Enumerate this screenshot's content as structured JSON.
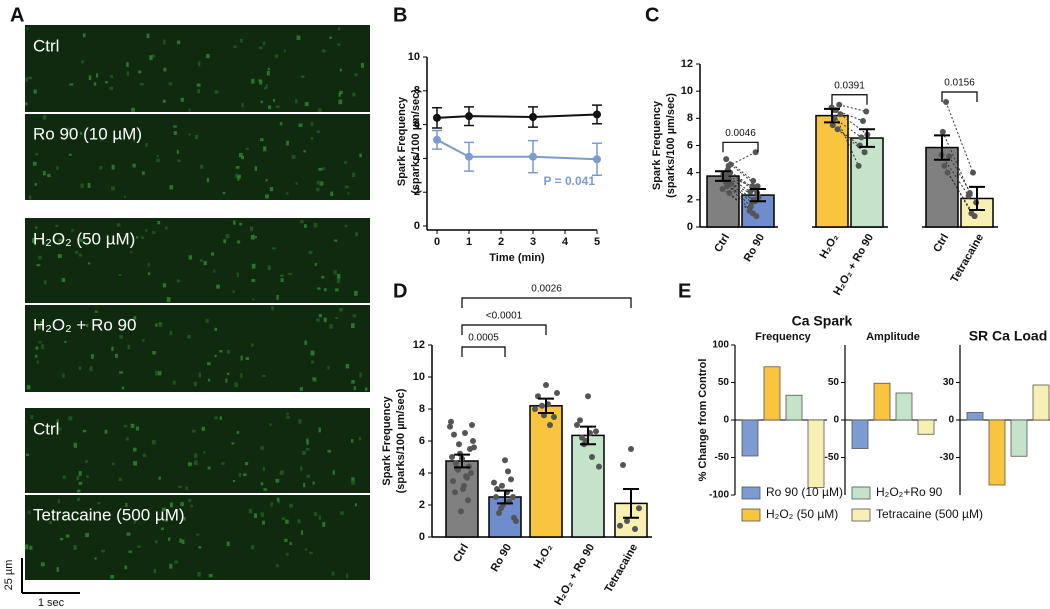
{
  "panel_labels": [
    "A",
    "B",
    "C",
    "D",
    "E"
  ],
  "images": {
    "labels": [
      "Ctrl",
      "Ro 90 (10 µM)",
      "H₂O₂ (50 µM)",
      "H₂O₂ + Ro 90",
      "Ctrl",
      "Tetracaine (500 µM)"
    ],
    "scale_bar_y": "25 µm",
    "scale_bar_x": "1 sec"
  },
  "chart_data": [
    {
      "type": "line",
      "xlabel": "Time (min)",
      "ylabel": [
        "Spark Frequency",
        "(sparks/100 µm/sec)"
      ],
      "x": [
        0,
        1,
        3,
        5
      ],
      "xlim": [
        0,
        5
      ],
      "xticks": [
        0,
        1,
        2,
        3,
        4,
        5
      ],
      "ylim": [
        0,
        10
      ],
      "yticks": [
        0,
        2,
        4,
        6,
        8,
        10
      ],
      "series": [
        {
          "color": "#111111",
          "values": [
            6.4,
            6.5,
            6.45,
            6.6
          ],
          "errors": [
            0.6,
            0.55,
            0.6,
            0.55
          ]
        },
        {
          "color": "#7b9bd1",
          "values": [
            5.1,
            4.1,
            4.1,
            3.95
          ],
          "errors": [
            0.55,
            0.85,
            0.95,
            0.95
          ]
        }
      ],
      "annotation": "P = 0.041"
    },
    {
      "type": "paired-bar",
      "ylabel": [
        "Spark Frequency",
        "(sparks/100 µm/sec)"
      ],
      "categories": [
        "Ctrl",
        "Ro 90",
        "H₂O₂",
        "H₂O₂ + Ro 90",
        "Ctrl",
        "Tetracaine"
      ],
      "values": [
        3.75,
        2.35,
        8.2,
        6.55,
        5.85,
        2.1
      ],
      "errors": [
        0.35,
        0.45,
        0.5,
        0.65,
        0.9,
        0.85
      ],
      "colors": [
        "#808080",
        "#6f8dcc",
        "#f9c53f",
        "#c3e4c9",
        "#808080",
        "#f8efb3"
      ],
      "points": [
        [
          3.0,
          3.5,
          4.0,
          3.8,
          4.5,
          2.8,
          3.2,
          5.0,
          4.2,
          3.6,
          2.5,
          3.9,
          4.6,
          3.3,
          3.4
        ],
        [
          2.0,
          1.5,
          2.5,
          3.0,
          5.5,
          1.2,
          2.2,
          3.4,
          2.8,
          1.8,
          0.8,
          2.6,
          3.0,
          1.0,
          1.9
        ],
        [
          8.6,
          7.5,
          9.0,
          8.0,
          7.2,
          8.8,
          8.3
        ],
        [
          7.8,
          6.0,
          8.5,
          6.6,
          5.5,
          4.5,
          6.8
        ],
        [
          9.2,
          7.0,
          5.2,
          4.5,
          4.0,
          5.3
        ],
        [
          4.0,
          2.5,
          1.8,
          1.0,
          0.8,
          2.3
        ]
      ],
      "comparisons": [
        "0.0046",
        "0.0391",
        "0.0156"
      ],
      "ylim": [
        0,
        12
      ],
      "yticks": [
        0,
        2,
        4,
        6,
        8,
        10,
        12
      ]
    },
    {
      "type": "bar",
      "ylabel": [
        "Spark Frequency",
        "(sparks/100 µm/sec)"
      ],
      "categories": [
        "Ctrl",
        "Ro 90",
        "H₂O₂",
        "H₂O₂ + Ro 90",
        "Tetracaine"
      ],
      "values": [
        4.75,
        2.5,
        8.2,
        6.35,
        2.1
      ],
      "errors": [
        0.4,
        0.4,
        0.45,
        0.55,
        0.9
      ],
      "colors": [
        "#808080",
        "#6f8dcc",
        "#f9c53f",
        "#c3e4c9",
        "#f8efb3"
      ],
      "points": [
        [
          4.9,
          6.4,
          5.5,
          4.2,
          3.8,
          7.2,
          6.0,
          5.2,
          3.2,
          4.6,
          2.3,
          3.5,
          4.0,
          5.8,
          6.5,
          2.8,
          4.4,
          1.6,
          3.0,
          5.0,
          7.0,
          4.3,
          3.7,
          6.9,
          5.6
        ],
        [
          4.8,
          3.0,
          2.5,
          1.8,
          2.2,
          3.4,
          1.0,
          2.0,
          2.8,
          1.5,
          3.6,
          2.5,
          1.2,
          3.2,
          4.1
        ],
        [
          9.5,
          8.8,
          7.5,
          8.2,
          7.0,
          8.0,
          9.0,
          7.6,
          8.3
        ],
        [
          8.8,
          7.3,
          6.6,
          5.8,
          5.0,
          7.0,
          4.4,
          6.0,
          6.5,
          6.2
        ],
        [
          5.5,
          4.5,
          1.8,
          1.0,
          0.5,
          0.7
        ]
      ],
      "comparisons": [
        "0.0005",
        "<0.0001",
        "0.0026"
      ],
      "ylim": [
        0,
        12
      ],
      "yticks": [
        0,
        2,
        4,
        6,
        8,
        10,
        12
      ]
    },
    {
      "type": "grouped-bar",
      "title": "Ca Spark",
      "ylabel": "% Change from Control",
      "panels": [
        {
          "title": "Frequency",
          "ylim": [
            -100,
            100
          ],
          "yticks": [
            -100,
            -50,
            0,
            50,
            100
          ]
        },
        {
          "title": "Amplitude",
          "ylim": [
            -100,
            100
          ],
          "yticks": [
            -50,
            0,
            50
          ]
        },
        {
          "title": "SR Ca Load",
          "ylim": [
            -60,
            60
          ],
          "yticks": [
            -30,
            0,
            30
          ]
        }
      ],
      "series": [
        {
          "name": "Ro 90 (10 µM)",
          "color": "#7b9bd1",
          "values": [
            -48,
            -38,
            6
          ]
        },
        {
          "name": "H₂O₂ (50 µM)",
          "color": "#f9c53f",
          "values": [
            71,
            49,
            -52
          ]
        },
        {
          "name": "H₂O₂+Ro 90",
          "color": "#c3e4c9",
          "values": [
            33,
            36,
            -29
          ]
        },
        {
          "name": "Tetracaine (500 µM)",
          "color": "#f8efb3",
          "values": [
            -90,
            -19,
            28
          ]
        }
      ],
      "legend": "bottom"
    }
  ]
}
